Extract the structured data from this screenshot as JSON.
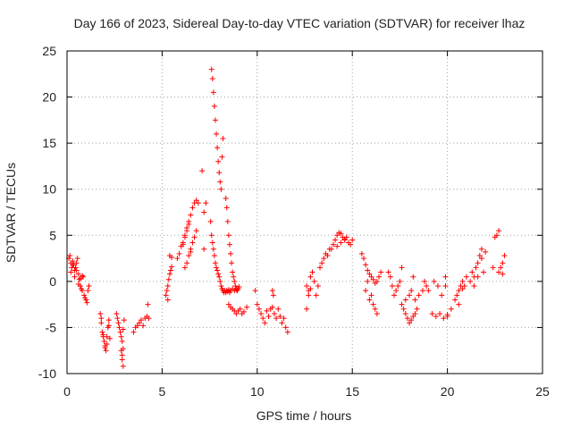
{
  "chart_data": {
    "type": "scatter",
    "title": "Day 166 of 2023, Sidereal Day-to-day VTEC variation (SDTVAR) for receiver lhaz",
    "xlabel": "GPS time / hours",
    "ylabel": "SDTVAR / TECUs",
    "xlim": [
      0,
      25
    ],
    "ylim": [
      -10,
      25
    ],
    "xticks": [
      0,
      5,
      10,
      15,
      20,
      25
    ],
    "yticks": [
      -10,
      -5,
      0,
      5,
      10,
      15,
      20,
      25
    ],
    "xtick_labels": [
      "0",
      "5",
      "10",
      "15",
      "20",
      "25"
    ],
    "ytick_labels": [
      "-10",
      "-5",
      "0",
      "5",
      "10",
      "15",
      "20",
      "25"
    ],
    "grid": true,
    "marker": "plus",
    "color": "#ff0000",
    "series": [
      {
        "name": "SDTVAR",
        "x": [
          0.1,
          0.15,
          0.2,
          0.25,
          0.3,
          0.35,
          0.4,
          0.45,
          0.5,
          0.55,
          0.6,
          0.65,
          0.7,
          0.75,
          0.8,
          0.85,
          0.9,
          0.95,
          1.0,
          1.05,
          1.1,
          1.15,
          0.2,
          0.3,
          0.4,
          0.5,
          0.6,
          0.7,
          0.8,
          1.75,
          1.8,
          1.85,
          1.9,
          1.95,
          2.0,
          2.05,
          2.1,
          2.15,
          2.2,
          2.25,
          1.8,
          1.9,
          2.0,
          2.1,
          2.2,
          2.6,
          2.65,
          2.7,
          2.75,
          2.8,
          2.85,
          2.9,
          2.95,
          3.0,
          2.85,
          2.9,
          2.95,
          2.9,
          2.95,
          3.5,
          3.6,
          3.7,
          3.8,
          3.9,
          4.0,
          4.1,
          4.2,
          4.3,
          4.25,
          5.2,
          5.25,
          5.3,
          5.35,
          5.4,
          5.45,
          5.5,
          5.3,
          5.4,
          5.5,
          5.8,
          5.9,
          6.0,
          6.1,
          6.2,
          6.3,
          6.4,
          6.5,
          6.6,
          6.7,
          6.8,
          6.9,
          6.2,
          6.3,
          6.4,
          6.5,
          6.6,
          6.7,
          6.8,
          6.1,
          6.2,
          6.3,
          6.4,
          6.5,
          7.1,
          7.2,
          7.3,
          7.2,
          7.6,
          7.65,
          7.7,
          7.75,
          7.8,
          7.85,
          7.9,
          7.95,
          8.0,
          8.05,
          8.1,
          8.15,
          8.2,
          7.55,
          7.6,
          7.65,
          7.7,
          7.75,
          7.8,
          7.85,
          7.9,
          7.95,
          8.0,
          8.05,
          8.1,
          8.15,
          8.2,
          8.25,
          8.3,
          8.35,
          8.4,
          8.45,
          8.5,
          8.55,
          8.6,
          8.7,
          8.8,
          8.9,
          8.35,
          8.4,
          8.45,
          8.5,
          8.55,
          8.6,
          8.65,
          8.7,
          8.75,
          8.8,
          8.85,
          8.9,
          8.95,
          9.0,
          9.05,
          8.5,
          8.6,
          8.7,
          8.8,
          8.9,
          9.0,
          9.1,
          9.2,
          9.3,
          9.45,
          9.9,
          10.0,
          10.1,
          10.2,
          10.3,
          10.4,
          10.5,
          10.6,
          10.7,
          10.8,
          10.9,
          11.0,
          11.1,
          11.2,
          11.3,
          11.4,
          11.5,
          11.6,
          10.8,
          10.85,
          12.6,
          12.7,
          12.8,
          12.9,
          13.0,
          13.1,
          13.2,
          13.3,
          13.4,
          13.5,
          13.6,
          13.7,
          13.8,
          12.7,
          12.8,
          12.6,
          13.9,
          14.0,
          14.1,
          14.2,
          14.3,
          14.4,
          14.5,
          14.6,
          14.7,
          14.8,
          14.9,
          15.0,
          14.2,
          14.4,
          14.6,
          15.5,
          15.6,
          15.7,
          15.8,
          15.9,
          16.0,
          16.1,
          16.2,
          16.3,
          16.4,
          16.5,
          15.7,
          15.9,
          16.1,
          16.3,
          15.8,
          16.0,
          16.2,
          16.9,
          17.0,
          17.1,
          17.2,
          17.3,
          17.4,
          17.6,
          17.5,
          17.6,
          17.7,
          17.8,
          17.9,
          18.0,
          18.1,
          18.2,
          18.3,
          18.4,
          17.8,
          18.0,
          18.2,
          18.1,
          18.3,
          18.5,
          18.7,
          18.8,
          18.9,
          19.0,
          19.2,
          19.4,
          19.6,
          19.8,
          20.0,
          20.2,
          19.3,
          19.5,
          19.7,
          19.9,
          19.9,
          20.0,
          20.4,
          20.5,
          20.6,
          20.7,
          20.8,
          20.9,
          21.0,
          20.6,
          20.8,
          21.2,
          21.3,
          21.4,
          21.5,
          21.6,
          21.7,
          21.8,
          21.9,
          21.4,
          21.6,
          21.8,
          22.0,
          22.4,
          22.5,
          22.6,
          22.7,
          22.8,
          22.9,
          23.0,
          22.7,
          22.9
        ],
        "y": [
          2.5,
          2.8,
          2.0,
          1.5,
          2.2,
          1.8,
          1.2,
          1.5,
          2.0,
          2.5,
          0.8,
          0.2,
          -0.5,
          -0.8,
          -1.0,
          0.5,
          -1.5,
          -1.8,
          -2.0,
          -2.3,
          -1.0,
          -0.5,
          1.0,
          1.8,
          0.5,
          1.2,
          -0.3,
          0.3,
          0.6,
          -3.5,
          -4.5,
          -5.5,
          -6.0,
          -6.5,
          -7.0,
          -7.5,
          -6.8,
          -5.0,
          -4.2,
          -6.2,
          -4.0,
          -5.8,
          -7.2,
          -6.0,
          -4.8,
          -3.5,
          -4.0,
          -4.5,
          -5.0,
          -5.5,
          -6.0,
          -6.5,
          -5.2,
          -4.2,
          -7.5,
          -8.5,
          -9.2,
          -8.0,
          -7.3,
          -5.5,
          -5.0,
          -4.8,
          -4.5,
          -4.2,
          -4.8,
          -4.0,
          -3.8,
          -4.0,
          -2.5,
          -1.5,
          -1.0,
          -0.5,
          0.2,
          0.8,
          1.2,
          1.6,
          -2.0,
          2.8,
          2.6,
          2.5,
          3.0,
          3.8,
          4.2,
          5.0,
          5.8,
          6.5,
          7.2,
          8.0,
          8.5,
          8.8,
          8.5,
          1.5,
          2.0,
          2.8,
          3.5,
          4.2,
          4.8,
          5.5,
          4.0,
          4.8,
          5.5,
          6.2,
          3.2,
          12.0,
          7.5,
          8.5,
          3.5,
          23.0,
          22.0,
          20.5,
          19.0,
          17.5,
          16.0,
          14.5,
          13.0,
          11.8,
          10.8,
          10.0,
          13.5,
          15.5,
          6.5,
          5.0,
          4.2,
          3.5,
          2.8,
          2.0,
          1.5,
          1.2,
          0.8,
          0.5,
          0.0,
          -0.5,
          -0.8,
          -1.0,
          -1.2,
          -1.0,
          -1.2,
          -1.0,
          -1.1,
          -0.9,
          -1.2,
          -1.0,
          -0.8,
          -1.0,
          -0.9,
          9.0,
          8.0,
          6.5,
          5.0,
          4.0,
          3.0,
          2.0,
          1.0,
          0.5,
          0.0,
          -0.5,
          -0.8,
          -1.0,
          -0.8,
          -0.6,
          -2.5,
          -2.8,
          -3.0,
          -3.2,
          -3.5,
          -3.2,
          -3.0,
          -3.5,
          -3.3,
          -2.8,
          -1.0,
          -2.5,
          -3.0,
          -3.5,
          -4.0,
          -4.5,
          -3.2,
          -3.8,
          -3.0,
          -2.8,
          -3.5,
          -4.0,
          -3.0,
          -3.8,
          -4.5,
          -4.0,
          -5.0,
          -5.5,
          -1.0,
          -1.5,
          -0.5,
          -1.0,
          0.5,
          1.0,
          0.0,
          -1.5,
          -0.5,
          1.5,
          2.0,
          2.5,
          3.0,
          2.8,
          3.5,
          -1.5,
          -0.8,
          -3.0,
          3.5,
          4.0,
          4.5,
          5.0,
          5.3,
          5.2,
          4.8,
          4.5,
          4.8,
          4.2,
          4.0,
          4.5,
          3.8,
          4.2,
          4.6,
          3.0,
          2.5,
          1.8,
          1.2,
          0.8,
          0.5,
          0.2,
          -0.2,
          0.0,
          0.5,
          1.0,
          -1.0,
          -2.0,
          -2.5,
          -3.5,
          0.0,
          -1.5,
          -3.0,
          1.0,
          0.5,
          -0.5,
          -1.5,
          -1.0,
          -0.5,
          1.5,
          0.0,
          -2.5,
          -3.0,
          -3.5,
          -4.0,
          -4.5,
          -4.2,
          -3.8,
          -3.5,
          -3.0,
          -2.0,
          -1.5,
          0.5,
          -1.0,
          -2.0,
          -1.5,
          -1.0,
          0.0,
          -0.5,
          -1.0,
          -3.5,
          -3.8,
          -3.5,
          -4.0,
          -3.6,
          -3.0,
          0.0,
          -0.5,
          -1.5,
          -0.5,
          0.5,
          -3.8,
          -2.0,
          -1.5,
          -1.0,
          -0.5,
          -0.8,
          -0.5,
          0.5,
          -2.5,
          0.0,
          0.0,
          1.0,
          0.5,
          1.5,
          2.0,
          2.8,
          3.5,
          1.0,
          -0.5,
          0.5,
          2.5,
          3.2,
          1.5,
          4.8,
          5.0,
          1.0,
          1.5,
          2.0,
          2.8,
          5.5,
          0.8
        ]
      }
    ]
  }
}
